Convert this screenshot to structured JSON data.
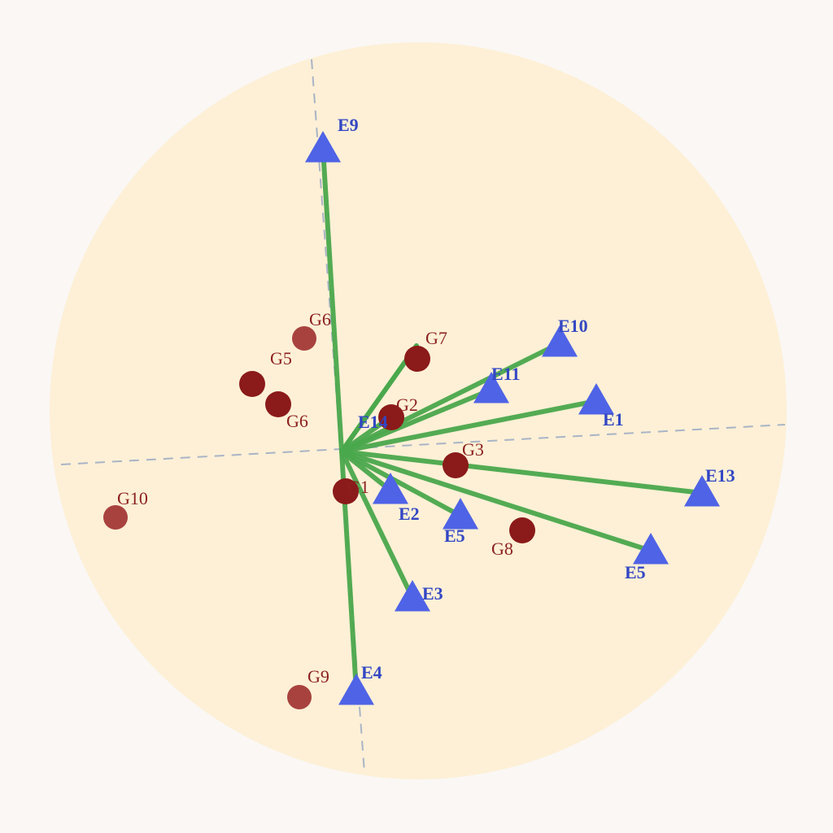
{
  "chart_data": {
    "type": "scatter",
    "title": "",
    "xlabel": "",
    "ylabel": "",
    "grid": false,
    "legend": "none",
    "colors": {
      "background": "#faf7f5",
      "circle_fill": "#fdf0d6",
      "vector": "#4aa84c",
      "environment_marker": "#4f63e6",
      "environment_label": "#3347c4",
      "genotype_marker": "#8b1a1a",
      "genotype_marker_light": "#a8423f",
      "genotype_label": "#8b1f1f",
      "axis_dash": "#a9b4c6"
    },
    "circle": {
      "center": [
        0.94,
        0.5
      ],
      "radius": 4.53
    },
    "axes": [
      {
        "from": [
          -3.45,
          -0.16
        ],
        "to": [
          5.45,
          0.33
        ]
      },
      {
        "from": [
          -0.37,
          4.82
        ],
        "to": [
          0.28,
          -3.95
        ]
      }
    ],
    "origin": [
      0,
      0
    ],
    "environments": [
      {
        "label": "E9",
        "x": -0.23,
        "y": 3.72
      },
      {
        "label": "E10",
        "x": 2.68,
        "y": 1.33
      },
      {
        "label": "E11",
        "x": 1.84,
        "y": 0.76
      },
      {
        "label": "E1",
        "x": 3.13,
        "y": 0.62
      },
      {
        "label": "E14",
        "x": 0.5,
        "y": 0.35
      },
      {
        "label": "E13",
        "x": 4.43,
        "y": -0.51
      },
      {
        "label": "E5",
        "x": 1.46,
        "y": -0.79
      },
      {
        "label": "E5",
        "x": 3.8,
        "y": -1.22
      },
      {
        "label": "E2",
        "x": 0.6,
        "y": -0.48
      },
      {
        "label": "E3",
        "x": 0.87,
        "y": -1.8
      },
      {
        "label": "E4",
        "x": 0.18,
        "y": -2.95
      }
    ],
    "extra_vectors": [
      {
        "x": 0.92,
        "y": 1.3
      }
    ],
    "genotypes": [
      {
        "label": "G6",
        "x": -0.46,
        "y": 1.39,
        "light": true
      },
      {
        "label": "G5",
        "x": -1.1,
        "y": 0.83,
        "light": false
      },
      {
        "label": "G6",
        "x": -0.78,
        "y": 0.58,
        "light": false
      },
      {
        "label": "G7",
        "x": 0.93,
        "y": 1.14,
        "light": false
      },
      {
        "label": "G2",
        "x": 0.61,
        "y": 0.42,
        "light": false
      },
      {
        "label": "G3",
        "x": 1.4,
        "y": -0.17,
        "light": false
      },
      {
        "label": "G1",
        "x": 0.05,
        "y": -0.49,
        "light": false
      },
      {
        "label": "G8",
        "x": 2.22,
        "y": -0.97,
        "light": false
      },
      {
        "label": "G10",
        "x": -2.78,
        "y": -0.81,
        "light": true
      },
      {
        "label": "G9",
        "x": -0.52,
        "y": -3.02,
        "light": true
      }
    ]
  }
}
